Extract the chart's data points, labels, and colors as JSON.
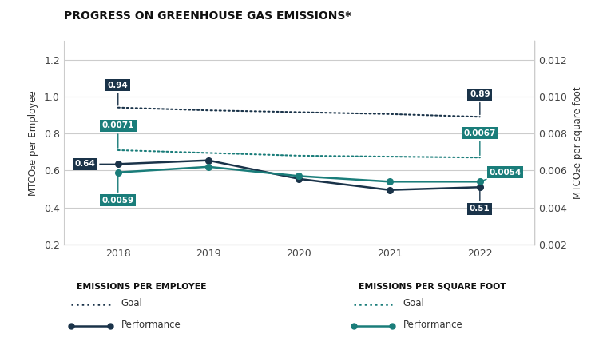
{
  "title": "PROGRESS ON GREENHOUSE GAS EMISSIONS*",
  "years": [
    2018,
    2019,
    2020,
    2021,
    2022
  ],
  "emp_goal": [
    0.94,
    0.925,
    0.915,
    0.905,
    0.89
  ],
  "emp_perf": [
    0.635,
    0.655,
    0.555,
    0.495,
    0.51
  ],
  "sqft_goal": [
    0.0071,
    0.00695,
    0.0068,
    0.00675,
    0.0067
  ],
  "sqft_perf": [
    0.0059,
    0.0062,
    0.0057,
    0.0054,
    0.0054
  ],
  "left_ylim": [
    0.2,
    1.3
  ],
  "right_ylim": [
    0.002,
    0.013
  ],
  "left_yticks": [
    0.2,
    0.4,
    0.6,
    0.8,
    1.0,
    1.2
  ],
  "right_yticks": [
    0.002,
    0.004,
    0.006,
    0.008,
    0.01,
    0.012
  ],
  "left_ylabel": "MTCO₂e per Employee",
  "right_ylabel": "MTCO₂e per square foot",
  "color_dark": "#1a3349",
  "color_teal": "#1a7d7a",
  "bg_color": "#ffffff",
  "legend_bg": "#dcdcdc",
  "grid_color": "#cccccc"
}
